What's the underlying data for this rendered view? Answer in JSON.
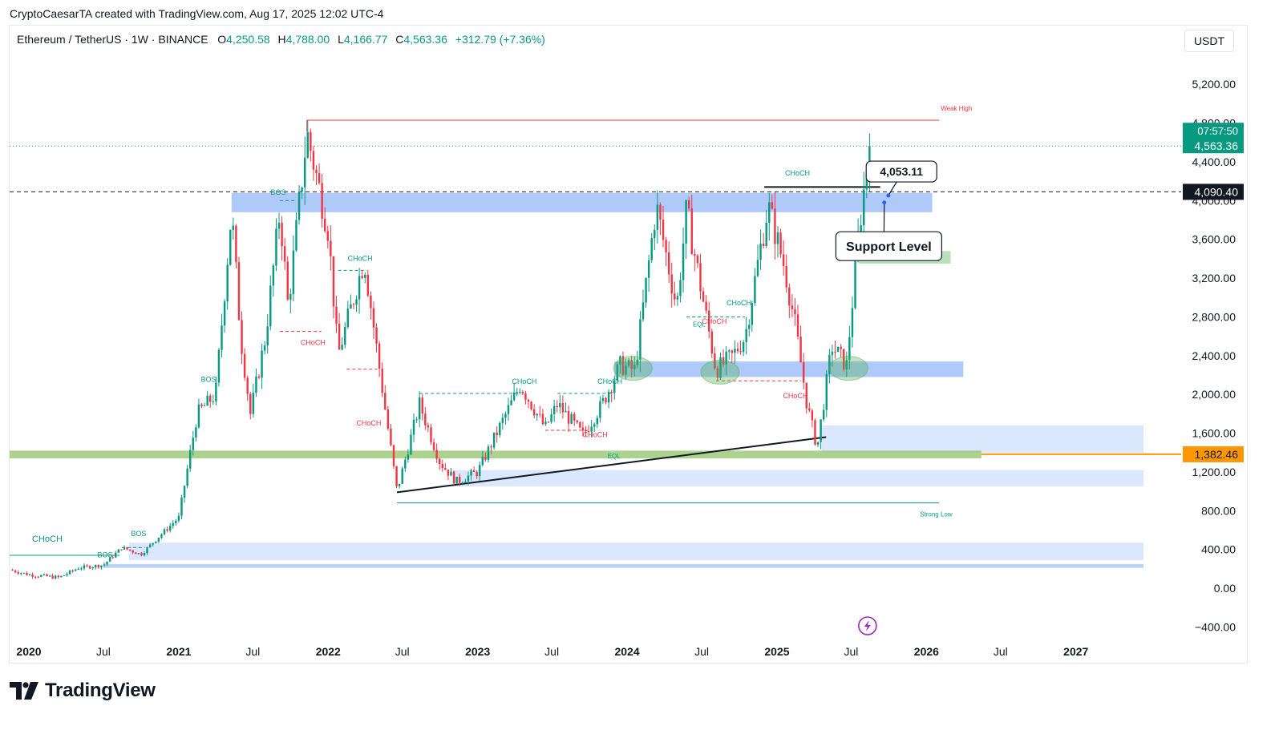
{
  "header": {
    "attribution": "CryptoCaesarTA created with TradingView.com, Aug 17, 2025 12:02 UTC-4"
  },
  "symbol": {
    "name": "Ethereum / TetherUS · 1W · BINANCE",
    "open_label": "O",
    "open": "4,250.58",
    "high_label": "H",
    "high": "4,788.00",
    "low_label": "L",
    "low": "4,166.77",
    "close_label": "C",
    "close": "4,563.36",
    "change": "+312.79 (+7.36%)"
  },
  "currency_button": "USDT",
  "footer": {
    "brand": "TradingView"
  },
  "colors": {
    "up": "#089981",
    "down": "#f23645",
    "zone_blue": "#6e9cf5",
    "zone_light": "#d6e4fc",
    "zone_green": "#a8d8a8",
    "orange": "#ff9800"
  },
  "chart_data": {
    "type": "candlestick",
    "title": "",
    "xlabel": "",
    "ylabel": "",
    "ylim": [
      -520,
      5450
    ],
    "xlim": [
      "2019-11-15",
      "2027-09-15"
    ],
    "y_ticks": [
      "5,200.00",
      "4,800.00",
      "4,400.00",
      "4,000.00",
      "3,600.00",
      "3,200.00",
      "2,800.00",
      "2,400.00",
      "2,000.00",
      "1,600.00",
      "1,200.00",
      "800.00",
      "400.00",
      "0.00",
      "−400.00"
    ],
    "y_tick_values": [
      5200,
      4800,
      4400,
      4000,
      3600,
      3200,
      2800,
      2400,
      2000,
      1600,
      1200,
      800,
      400,
      0,
      -400
    ],
    "x_ticks": [
      {
        "label": "2020",
        "date": "2020-01-01",
        "bold": true
      },
      {
        "label": "Jul",
        "date": "2020-07-01",
        "bold": false
      },
      {
        "label": "2021",
        "date": "2021-01-01",
        "bold": true
      },
      {
        "label": "Jul",
        "date": "2021-07-01",
        "bold": false
      },
      {
        "label": "2022",
        "date": "2022-01-01",
        "bold": true
      },
      {
        "label": "Jul",
        "date": "2022-07-01",
        "bold": false
      },
      {
        "label": "2023",
        "date": "2023-01-01",
        "bold": true
      },
      {
        "label": "Jul",
        "date": "2023-07-01",
        "bold": false
      },
      {
        "label": "2024",
        "date": "2024-01-01",
        "bold": true
      },
      {
        "label": "Jul",
        "date": "2024-07-01",
        "bold": false
      },
      {
        "label": "2025",
        "date": "2025-01-01",
        "bold": true
      },
      {
        "label": "Jul",
        "date": "2025-07-01",
        "bold": false
      },
      {
        "label": "2026",
        "date": "2026-01-01",
        "bold": true
      },
      {
        "label": "Jul",
        "date": "2026-07-01",
        "bold": false
      },
      {
        "label": "2027",
        "date": "2027-01-01",
        "bold": true
      }
    ],
    "price_path": [
      [
        "2019-11-15",
        190
      ],
      [
        "2020-01-01",
        140
      ],
      [
        "2020-03-15",
        110
      ],
      [
        "2020-05-01",
        210
      ],
      [
        "2020-07-01",
        240
      ],
      [
        "2020-08-15",
        420
      ],
      [
        "2020-10-01",
        350
      ],
      [
        "2020-11-20",
        560
      ],
      [
        "2021-01-01",
        730
      ],
      [
        "2021-02-15",
        1800
      ],
      [
        "2021-04-01",
        2000
      ],
      [
        "2021-05-10",
        3900
      ],
      [
        "2021-06-01",
        2600
      ],
      [
        "2021-06-25",
        1800
      ],
      [
        "2021-08-01",
        2600
      ],
      [
        "2021-09-05",
        3900
      ],
      [
        "2021-09-25",
        2900
      ],
      [
        "2021-11-10",
        4700
      ],
      [
        "2022-01-01",
        3700
      ],
      [
        "2022-01-25",
        2400
      ],
      [
        "2022-03-30",
        3400
      ],
      [
        "2022-05-15",
        2000
      ],
      [
        "2022-06-18",
        1000
      ],
      [
        "2022-08-12",
        1900
      ],
      [
        "2022-10-01",
        1300
      ],
      [
        "2022-11-10",
        1100
      ],
      [
        "2023-01-01",
        1200
      ],
      [
        "2023-04-15",
        2100
      ],
      [
        "2023-06-15",
        1650
      ],
      [
        "2023-07-15",
        1900
      ],
      [
        "2023-09-15",
        1580
      ],
      [
        "2023-11-01",
        1900
      ],
      [
        "2023-12-15",
        2300
      ],
      [
        "2024-01-20",
        2250
      ],
      [
        "2024-03-12",
        3950
      ],
      [
        "2024-05-01",
        2900
      ],
      [
        "2024-05-25",
        3900
      ],
      [
        "2024-08-05",
        2250
      ],
      [
        "2024-09-15",
        2400
      ],
      [
        "2024-10-15",
        2600
      ],
      [
        "2024-12-10",
        3950
      ],
      [
        "2025-01-20",
        3300
      ],
      [
        "2025-02-15",
        2700
      ],
      [
        "2025-03-15",
        1900
      ],
      [
        "2025-04-09",
        1450
      ],
      [
        "2025-05-15",
        2500
      ],
      [
        "2025-06-20",
        2300
      ],
      [
        "2025-07-20",
        3700
      ],
      [
        "2025-08-15",
        4563
      ]
    ],
    "last_price": 4563.36,
    "last_price_label": "4,563.36",
    "countdown": "07:57:50",
    "dashed_level": 4090.4,
    "dashed_level_label": "4,090.40",
    "orange_level": 1382.46,
    "orange_level_label": "1,382.46",
    "weak_high": {
      "label": "Weak High",
      "price": 4830,
      "from": "2021-11-10",
      "to": "2026-02-01"
    },
    "strong_low": {
      "label": "Strong Low",
      "price": 880,
      "from": "2022-06-18",
      "to": "2026-02-01"
    },
    "zones": [
      {
        "name": "resistance-zone",
        "from": "2021-05-10",
        "to": "2026-01-15",
        "y1": 3880,
        "y2": 4080,
        "color": "#6e9cf5",
        "opacity": 0.55
      },
      {
        "name": "mid-support-zone",
        "from": "2023-12-01",
        "to": "2026-04-01",
        "y1": 2180,
        "y2": 2340,
        "color": "#6e9cf5",
        "opacity": 0.55
      },
      {
        "name": "green-demand-zone",
        "from": "2025-07-20",
        "to": "2026-03-01",
        "y1": 3350,
        "y2": 3480,
        "color": "#a8d8a8",
        "opacity": 0.8
      },
      {
        "name": "light-zone-upper",
        "from": "2025-04-20",
        "to": "2027-06-15",
        "y1": 1400,
        "y2": 1680,
        "color": "#d6e4fc",
        "opacity": 0.9
      },
      {
        "name": "light-zone-lower",
        "from": "2022-11-01",
        "to": "2027-06-15",
        "y1": 1050,
        "y2": 1220,
        "color": "#d6e4fc",
        "opacity": 0.9
      },
      {
        "name": "light-zone-bottom",
        "from": "2020-09-01",
        "to": "2027-06-15",
        "y1": 290,
        "y2": 470,
        "color": "#d6e4fc",
        "opacity": 0.9
      },
      {
        "name": "light-zone-baseline",
        "from": "2020-07-01",
        "to": "2027-06-15",
        "y1": 210,
        "y2": 250,
        "color": "#b7cdf5",
        "opacity": 0.9
      }
    ],
    "green_band": {
      "from": "2019-11-15",
      "to": "2026-05-15",
      "y1": 1340,
      "y2": 1420
    },
    "trendline": {
      "from": [
        "2022-06-18",
        990
      ],
      "to": [
        "2025-05-01",
        1560
      ]
    },
    "breakout_line": {
      "from": [
        "2024-12-01",
        4140
      ],
      "to": [
        "2025-09-10",
        4140
      ]
    },
    "highlights": [
      {
        "date": "2024-01-15",
        "price": 2270
      },
      {
        "date": "2024-08-15",
        "price": 2230
      },
      {
        "date": "2025-06-25",
        "price": 2270
      }
    ],
    "annotations": [
      {
        "text": "BOS",
        "date": "2021-09-01",
        "price": 4060,
        "color": "#089981",
        "size": 9
      },
      {
        "text": "CHoCH",
        "date": "2022-03-20",
        "price": 3380,
        "color": "#089981",
        "size": 9
      },
      {
        "text": "CHoCH",
        "date": "2021-11-25",
        "price": 2510,
        "color": "#f23645",
        "size": 9
      },
      {
        "text": "CHoCH",
        "date": "2022-04-10",
        "price": 1680,
        "color": "#f23645",
        "size": 9
      },
      {
        "text": "BOS",
        "date": "2021-03-15",
        "price": 2130,
        "color": "#089981",
        "size": 9
      },
      {
        "text": "BOS",
        "date": "2020-09-25",
        "price": 540,
        "color": "#089981",
        "size": 9
      },
      {
        "text": "BOS",
        "date": "2020-07-05",
        "price": 320,
        "color": "#089981",
        "size": 9
      },
      {
        "text": "CHoCH",
        "date": "2020-02-15",
        "price": 480,
        "color": "#089981",
        "size": 11
      },
      {
        "text": "CHoCH",
        "date": "2023-04-25",
        "price": 2110,
        "color": "#089981",
        "size": 9
      },
      {
        "text": "CHoCH",
        "date": "2023-11-20",
        "price": 2110,
        "color": "#089981",
        "size": 9
      },
      {
        "text": "CHoCH",
        "date": "2023-10-15",
        "price": 1560,
        "color": "#f23645",
        "size": 9
      },
      {
        "text": "EQL",
        "date": "2023-11-30",
        "price": 1340,
        "color": "#089981",
        "size": 8
      },
      {
        "text": "CHoCH",
        "date": "2024-09-30",
        "price": 2920,
        "color": "#089981",
        "size": 9
      },
      {
        "text": "CHoCH",
        "date": "2024-08-01",
        "price": 2730,
        "color": "#f23645",
        "size": 9
      },
      {
        "text": "EQL",
        "date": "2024-06-25",
        "price": 2700,
        "color": "#089981",
        "size": 8
      },
      {
        "text": "CHoCH",
        "date": "2025-02-15",
        "price": 1960,
        "color": "#f23645",
        "size": 9
      },
      {
        "text": "CHoCH",
        "date": "2025-02-20",
        "price": 4260,
        "color": "#089981",
        "size": 9
      }
    ],
    "structure_lines": [
      {
        "from": [
          "2021-09-05",
          4000
        ],
        "to": [
          "2021-10-15",
          4000
        ],
        "color": "#089981",
        "dashed": true
      },
      {
        "from": [
          "2021-09-05",
          2650
        ],
        "to": [
          "2021-12-15",
          2650
        ],
        "color": "#f23645",
        "dashed": true
      },
      {
        "from": [
          "2022-01-25",
          3280
        ],
        "to": [
          "2022-04-05",
          3280
        ],
        "color": "#089981",
        "dashed": true
      },
      {
        "from": [
          "2022-02-15",
          2260
        ],
        "to": [
          "2022-05-01",
          2260
        ],
        "color": "#f23645",
        "dashed": true
      },
      {
        "from": [
          "2020-08-15",
          420
        ],
        "to": [
          "2020-10-10",
          420
        ],
        "color": "#089981",
        "dashed": true
      },
      {
        "from": [
          "2019-11-15",
          340
        ],
        "to": [
          "2020-08-10",
          340
        ],
        "color": "#089981",
        "dashed": false
      },
      {
        "from": [
          "2022-08-12",
          2010
        ],
        "to": [
          "2023-04-15",
          2010
        ],
        "color": "#089981",
        "dashed": true
      },
      {
        "from": [
          "2023-07-15",
          2010
        ],
        "to": [
          "2023-11-30",
          2010
        ],
        "color": "#089981",
        "dashed": true
      },
      {
        "from": [
          "2023-06-15",
          1630
        ],
        "to": [
          "2023-09-30",
          1630
        ],
        "color": "#f23645",
        "dashed": true
      },
      {
        "from": [
          "2024-05-25",
          2800
        ],
        "to": [
          "2024-10-15",
          2800
        ],
        "color": "#089981",
        "dashed": true
      },
      {
        "from": [
          "2024-08-05",
          2140
        ],
        "to": [
          "2025-03-01",
          2140
        ],
        "color": "#f23645",
        "dashed": true
      }
    ],
    "callouts": [
      {
        "name": "price-callout",
        "text": "4,053.11",
        "target": [
          "2025-09-30",
          4053
        ],
        "box_date": "2025-11-01",
        "box_price": 4300
      },
      {
        "name": "support-callout",
        "text": "Support Level",
        "target": [
          "2025-09-20",
          3980
        ],
        "box_date": "2025-10-01",
        "box_price": 3530
      }
    ]
  }
}
